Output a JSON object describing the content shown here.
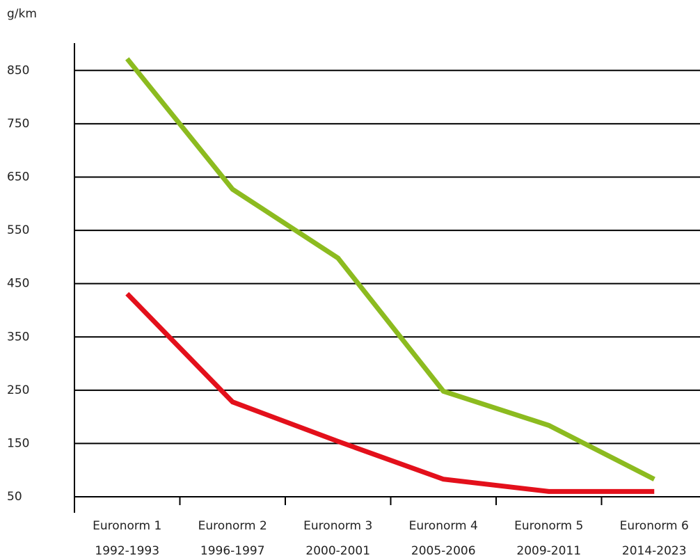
{
  "chart_data": {
    "type": "line",
    "y_label": "g/km",
    "categories": [
      [
        "Euronorm 1",
        "1992-1993"
      ],
      [
        "Euronorm 2",
        "1996-1997"
      ],
      [
        "Euronorm 3",
        "2000-2001"
      ],
      [
        "Euronorm 4",
        "2005-2006"
      ],
      [
        "Euronorm 5",
        "2009-2011"
      ],
      [
        "Euronorm 6",
        "2014-2023"
      ]
    ],
    "series": [
      {
        "color": "#8cbb1f",
        "values": [
          872,
          627,
          498,
          248,
          184,
          83
        ]
      },
      {
        "color": "#e3101b",
        "values": [
          431,
          228,
          154,
          83,
          60,
          60
        ]
      }
    ],
    "ylim": [
      20,
      900
    ],
    "yticks": [
      50,
      150,
      250,
      350,
      450,
      550,
      650,
      750,
      850
    ],
    "grid": true
  }
}
